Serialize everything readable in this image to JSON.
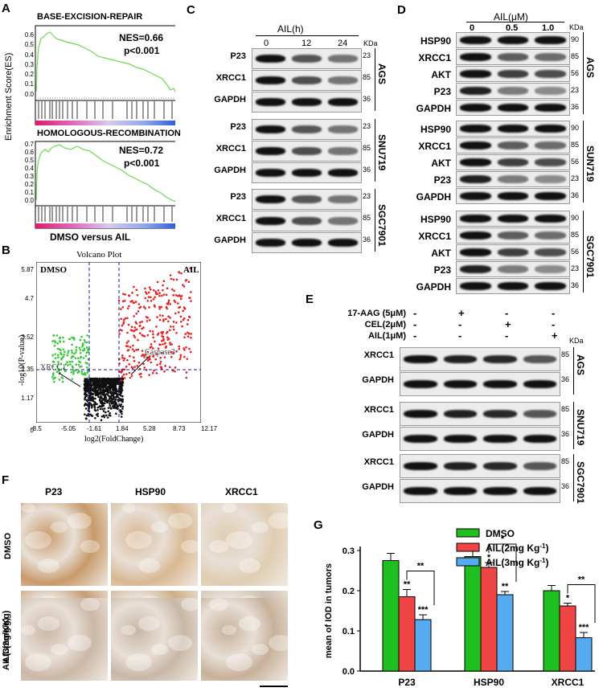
{
  "panels": {
    "a": "A",
    "b": "B",
    "c": "C",
    "d": "D",
    "e": "E",
    "f": "F",
    "g": "G"
  },
  "gsea": {
    "ylabel": "Enrichment Score(ES)",
    "xlabel": "DMSO versus AIL",
    "plots": [
      {
        "title": "BASE-EXCISION-REPAIR",
        "nes": "NES=0.66",
        "p": "p<0.001",
        "yticks": [
          "0.6",
          "0.5",
          "0.4",
          "0.3",
          "0.2",
          "0.1",
          "0.0"
        ]
      },
      {
        "title": "HOMOLOGOUS-RECOMBINATION",
        "nes": "NES=0.72",
        "p": "p<0.001",
        "yticks": [
          "0.7",
          "0.6",
          "0.5",
          "0.4",
          "0.3",
          "0.2",
          "0.1",
          "0.0"
        ]
      }
    ]
  },
  "volcano": {
    "title": "Volcano Plot",
    "left_group": "DMSO",
    "right_group": "AIL",
    "xlabel": "log2(FoldChange)",
    "ylabel": "-log10(P-value)",
    "xticks": [
      "-8.5",
      "-5.05",
      "-1.61",
      "1.84",
      "5.28",
      "8.73",
      "12.17"
    ],
    "yticks": [
      "5.87",
      "4.7",
      "3.52",
      "2.35",
      "1.17",
      "0"
    ],
    "gene_left": "XRCC1",
    "gene_right": "Caspase3",
    "colors": {
      "up": "#e62020",
      "down": "#37c837",
      "ns": "#111111",
      "threshold": "#1a1aa8"
    }
  },
  "blot_c": {
    "header": "AIL(h)",
    "lanes": [
      "0",
      "12",
      "24"
    ],
    "kda": "KDa",
    "groups": [
      {
        "cell": "AGS",
        "rows": [
          {
            "name": "P23",
            "mw": "23"
          },
          {
            "name": "XRCC1",
            "mw": "85"
          },
          {
            "name": "GAPDH",
            "mw": "36"
          }
        ]
      },
      {
        "cell": "SNU719",
        "rows": [
          {
            "name": "P23",
            "mw": "23"
          },
          {
            "name": "XRCC1",
            "mw": "85"
          },
          {
            "name": "GAPDH",
            "mw": "36"
          }
        ]
      },
      {
        "cell": "SGC7901",
        "rows": [
          {
            "name": "P23",
            "mw": "23"
          },
          {
            "name": "XRCC1",
            "mw": "85"
          },
          {
            "name": "GAPDH",
            "mw": "36"
          }
        ]
      }
    ]
  },
  "blot_d": {
    "header": "AIL(μM)",
    "lanes": [
      "0",
      "0.5",
      "1.0"
    ],
    "kda": "KDa",
    "groups": [
      {
        "cell": "AGS",
        "rows": [
          {
            "name": "HSP90",
            "mw": "90"
          },
          {
            "name": "XRCC1",
            "mw": "85"
          },
          {
            "name": "AKT",
            "mw": "56"
          },
          {
            "name": "P23",
            "mw": "23"
          },
          {
            "name": "GAPDH",
            "mw": "36"
          }
        ]
      },
      {
        "cell": "SUN719",
        "rows": [
          {
            "name": "HSP90",
            "mw": "90"
          },
          {
            "name": "XRCC1",
            "mw": "85"
          },
          {
            "name": "AKT",
            "mw": "56"
          },
          {
            "name": "P23",
            "mw": "23"
          },
          {
            "name": "GAPDH",
            "mw": "36"
          }
        ]
      },
      {
        "cell": "SGC7901",
        "rows": [
          {
            "name": "HSP90",
            "mw": "90"
          },
          {
            "name": "XRCC1",
            "mw": "85"
          },
          {
            "name": "AKT",
            "mw": "56"
          },
          {
            "name": "P23",
            "mw": "23"
          },
          {
            "name": "GAPDH",
            "mw": "36"
          }
        ]
      }
    ]
  },
  "blot_e": {
    "treatments": [
      {
        "label": "17-AAG (5μM)",
        "signs": [
          "-",
          "+",
          "-",
          "-"
        ]
      },
      {
        "label": "CEL(2μM)",
        "signs": [
          "-",
          "-",
          "+",
          "-"
        ]
      },
      {
        "label": "AIL(1μM)",
        "signs": [
          "-",
          "-",
          "-",
          "+"
        ]
      }
    ],
    "kda": "KDa",
    "groups": [
      {
        "cell": "AGS",
        "rows": [
          {
            "name": "XRCC1",
            "mw": "85"
          },
          {
            "name": "GAPDH",
            "mw": "36"
          }
        ]
      },
      {
        "cell": "SNU719",
        "rows": [
          {
            "name": "XRCC1",
            "mw": "85"
          },
          {
            "name": "GAPDH",
            "mw": "36"
          }
        ]
      },
      {
        "cell": "SGC7901",
        "rows": [
          {
            "name": "XRCC1",
            "mw": "85"
          },
          {
            "name": "GAPDH",
            "mw": "36"
          }
        ]
      }
    ]
  },
  "ihc": {
    "columns": [
      "P23",
      "HSP90",
      "XRCC1"
    ],
    "rows": [
      "DMSO",
      "AIL(2mg/Kg)",
      "AIL(3mg/Kg)"
    ]
  },
  "chart_data": {
    "type": "bar",
    "categories": [
      "P23",
      "HSP90",
      "XRCC1"
    ],
    "ylabel": "mean of IOD in tumors",
    "ylim": [
      0,
      0.3
    ],
    "yticks": [
      "0.0",
      "0.1",
      "0.2",
      "0.3"
    ],
    "legend_position": "top-right",
    "series": [
      {
        "name": "DMSO",
        "color": "#1fbf1f",
        "values": [
          0.275,
          0.285,
          0.2
        ],
        "errors": [
          0.018,
          0.013,
          0.013
        ],
        "stars": [
          "",
          "",
          ""
        ]
      },
      {
        "name": "AIL(2mg Kg",
        "sup": "-1",
        "name_end": ")",
        "color": "#f04545",
        "values": [
          0.185,
          0.258,
          0.162
        ],
        "errors": [
          0.018,
          0.012,
          0.007
        ],
        "stars": [
          "**",
          "*",
          "*"
        ]
      },
      {
        "name": "AIL(3mg Kg",
        "sup": "-1",
        "name_end": ")",
        "color": "#55aaf0",
        "values": [
          0.128,
          0.19,
          0.083
        ],
        "errors": [
          0.012,
          0.008,
          0.013
        ],
        "stars": [
          "***",
          "**",
          "***"
        ]
      }
    ],
    "comparisons": [
      "**",
      "*",
      "**"
    ]
  }
}
